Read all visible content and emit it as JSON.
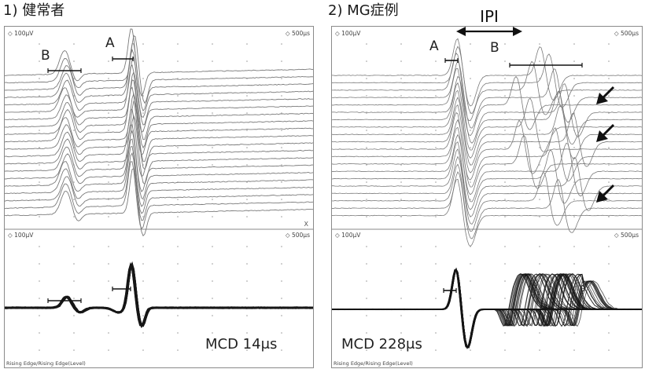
{
  "titles": {
    "left": "1) 健常者",
    "right": "2) MG症例"
  },
  "colors": {
    "trace": "#7a7a7a",
    "superimposed": "#161616",
    "grid": "#9a9a9a",
    "marker": "#111111"
  },
  "chart_data": [
    {
      "type": "line",
      "title": "1) 健常者",
      "panels": {
        "top": {
          "amp_label": "100μV",
          "time_label": "500μs",
          "corner_mark": "X",
          "trace_count": 20
        },
        "bottom": {
          "amp_label": "100μV",
          "time_label": "500μs",
          "trigger_label": "Rising Edge/Rising Edge(Level)"
        }
      },
      "annotations": {
        "A": "A",
        "B": "B",
        "mcd": "MCD 14μs"
      },
      "series": [
        {
          "name": "A",
          "latency_jitter": "narrow"
        },
        {
          "name": "B",
          "latency_jitter": "narrow"
        }
      ],
      "mcd_us": 14
    },
    {
      "type": "line",
      "title": "2) MG症例",
      "panels": {
        "top": {
          "amp_label": "100μV",
          "time_label": "500μs",
          "trace_count": 20
        },
        "bottom": {
          "amp_label": "100μV",
          "time_label": "500μs",
          "trigger_label": "Rising Edge/Rising Edge(Level)"
        }
      },
      "annotations": {
        "A": "A",
        "B": "B",
        "ipi": "IPI",
        "mcd": "MCD 228μs",
        "arrows": 3
      },
      "series": [
        {
          "name": "A",
          "latency_jitter": "narrow"
        },
        {
          "name": "B",
          "latency_jitter": "wide",
          "blocking": true
        }
      ],
      "mcd_us": 228
    }
  ]
}
